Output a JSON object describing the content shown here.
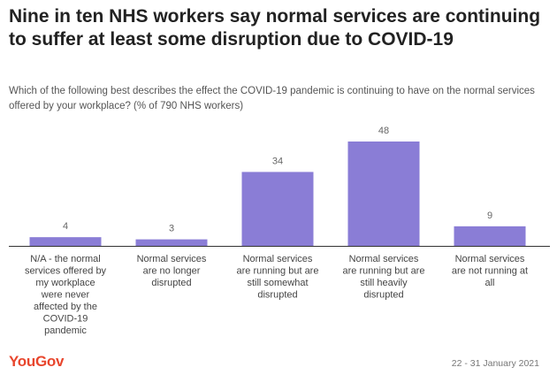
{
  "header": {
    "title": "Nine in ten NHS workers say normal services are continuing to suffer at least some disruption due to COVID-19",
    "subtitle": "Which of the following best describes the effect the COVID-19 pandemic is continuing to have on the normal services offered by your workplace? (% of 790 NHS workers)"
  },
  "chart_data": {
    "type": "bar",
    "categories": [
      "N/A - the normal services offered by my workplace were never affected by the COVID-19 pandemic",
      "Normal services are no longer disrupted",
      "Normal services are running but are still somewhat disrupted",
      "Normal services are running but are still heavily disrupted",
      "Normal services are not running at all"
    ],
    "category_lines": [
      [
        "N/A - the normal",
        "services offered by",
        "my workplace",
        "were never",
        "affected by the",
        "COVID-19",
        "pandemic"
      ],
      [
        "Normal services",
        "are no longer",
        "disrupted"
      ],
      [
        "Normal services",
        "are running but are",
        "still somewhat",
        "disrupted"
      ],
      [
        "Normal services",
        "are running but are",
        "still heavily",
        "disrupted"
      ],
      [
        "Normal services",
        "are not running at",
        "all"
      ]
    ],
    "values": [
      4,
      3,
      34,
      48,
      9
    ],
    "bar_color": "#8a7dd6",
    "grid": false,
    "legend": "none"
  },
  "footer": {
    "logo": "YouGov",
    "logo_color": "#e8462d",
    "date": "22 - 31 January 2021"
  }
}
